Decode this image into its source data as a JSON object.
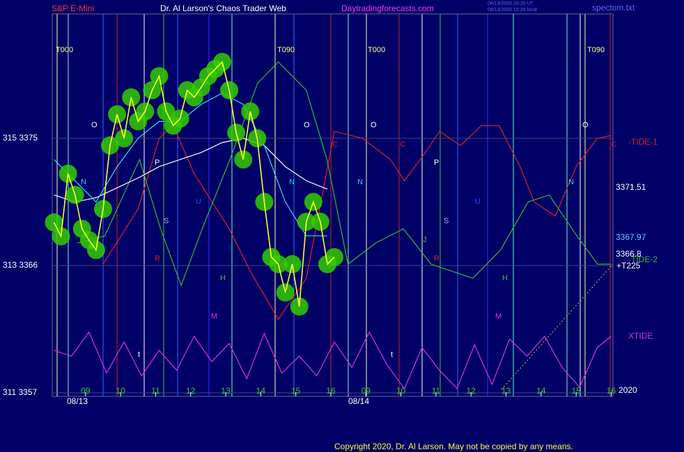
{
  "header": {
    "symbol": "S&P E-Mini",
    "site": "Dr. Al Larson's Chaos Trader Web",
    "url": "Daytradingforecasts.com",
    "stamp_ut": "08/13/2020 20:20 UT",
    "stamp_local": "08/13/2020 15:20 local",
    "file": "spectom.txt"
  },
  "footer": {
    "copyright": "Copyright 2020, Dr. Al Larson. May not be copied by any means."
  },
  "annotations": [
    "T000",
    "T090",
    "T000",
    "T090",
    "O",
    "O",
    "O",
    "O",
    "P",
    "P",
    "S",
    "S",
    "U",
    "U",
    "N",
    "N",
    "N",
    "N",
    "H",
    "H",
    "M",
    "M",
    "J",
    "R",
    "R",
    "C",
    "C",
    "C",
    "t",
    "t",
    "08/13",
    "08/14"
  ],
  "right_labels": [
    "+T225",
    "2020"
  ],
  "chart_data": {
    "type": "line",
    "xlim": [
      -0.95,
      15.05
    ],
    "ylim": [
      3356.75,
      3383.8
    ],
    "xticks": [
      {
        "value": 0,
        "label": "09"
      },
      {
        "value": 1,
        "label": "10"
      },
      {
        "value": 2,
        "label": "11"
      },
      {
        "value": 3,
        "label": "12"
      },
      {
        "value": 4,
        "label": "13"
      },
      {
        "value": 5,
        "label": "14"
      },
      {
        "value": 6,
        "label": "15"
      },
      {
        "value": 7,
        "label": "16"
      },
      {
        "value": 8,
        "label": "09"
      },
      {
        "value": 9,
        "label": "10"
      },
      {
        "value": 10,
        "label": "11"
      },
      {
        "value": 11,
        "label": "12"
      },
      {
        "value": 12,
        "label": "13"
      },
      {
        "value": 13,
        "label": "14"
      },
      {
        "value": 14,
        "label": "15"
      },
      {
        "value": 15,
        "label": "16"
      }
    ],
    "yticks": [
      {
        "value": 3357,
        "label": "311  3357"
      },
      {
        "value": 3366,
        "label": "313  3366"
      },
      {
        "value": 3375,
        "label": "315  3375"
      }
    ],
    "price_labels": [
      3371.51,
      3367.97,
      3366.8
    ],
    "price_label_colors": [
      "#ffffff",
      "#66ccff",
      "#ffffff"
    ],
    "grid": true,
    "series": [
      {
        "name": "-TIDE-1",
        "color": "#dd2222",
        "x": [
          0.5,
          1.5,
          2.1,
          2.5,
          3.1,
          4.1,
          4.7,
          5.5,
          6.3,
          7.1,
          7.9,
          8.7,
          9.1,
          9.7,
          10.1,
          10.7,
          11.3,
          11.8,
          12.4,
          12.8,
          13.4,
          14.0,
          14.6,
          15.0
        ],
        "values": [
          3366.1,
          3370.0,
          3375.0,
          3375.9,
          3372.5,
          3368.6,
          3365.6,
          3362.2,
          3365.1,
          3375.5,
          3375.0,
          3373.5,
          3372.0,
          3374.0,
          3375.5,
          3374.5,
          3375.9,
          3375.9,
          3373.0,
          3370.5,
          3369.5,
          3373.0,
          3375.0,
          3375.2
        ]
      },
      {
        "name": "-TIDE-2",
        "color": "#33bb33",
        "x": [
          -0.24,
          0.55,
          1.54,
          2.14,
          2.73,
          3.33,
          4.12,
          4.91,
          5.5,
          6.3,
          6.89,
          7.49,
          8.28,
          9.07,
          9.86,
          11.05,
          11.84,
          12.63,
          13.23,
          14.02,
          14.61,
          15.0
        ],
        "values": [
          3367.6,
          3368.1,
          3373.5,
          3368.6,
          3364.6,
          3368.6,
          3373.5,
          3378.9,
          3380.4,
          3378.4,
          3373.5,
          3366.1,
          3367.6,
          3368.6,
          3366.1,
          3365.1,
          3367.1,
          3370.5,
          3371.0,
          3368.1,
          3366.1,
          3366.1
        ]
      },
      {
        "name": "XTIDE",
        "color": "#dd33dd",
        "x": [
          -0.9,
          -0.4,
          0.1,
          0.6,
          1.1,
          1.6,
          2.1,
          2.6,
          3.1,
          3.6,
          4.1,
          4.6,
          5.1,
          5.6,
          6.1,
          6.6,
          7.1,
          7.6,
          8.1,
          8.6,
          9.1,
          9.6,
          10.1,
          10.6,
          11.1,
          11.6,
          12.1,
          12.6,
          13.1,
          13.6,
          14.1,
          14.6,
          15.0
        ],
        "values": [
          3360.0,
          3359.6,
          3361.3,
          3358.4,
          3360.6,
          3358.2,
          3360.0,
          3358.6,
          3361.0,
          3359.2,
          3360.5,
          3358.0,
          3361.2,
          3358.4,
          3359.6,
          3358.2,
          3360.6,
          3358.8,
          3361.3,
          3359.0,
          3357.3,
          3360.2,
          3358.6,
          3357.3,
          3360.4,
          3357.6,
          3360.8,
          3359.6,
          3361.0,
          3358.8,
          3357.4,
          3360.2,
          3361.0
        ]
      },
      {
        "color": "#ffffff",
        "x": [
          -0.9,
          -0.3,
          0.3,
          0.9,
          1.5,
          2.1,
          2.7,
          3.3,
          3.9,
          4.5,
          5.1,
          5.7,
          6.3,
          6.9
        ],
        "values": [
          3371.0,
          3370.5,
          3370.8,
          3371.5,
          3372.2,
          3373.0,
          3373.5,
          3374.0,
          3374.7,
          3375.0,
          3374.5,
          3373.0,
          3372.0,
          3371.4
        ]
      },
      {
        "color": "#33ddff",
        "x": [
          -0.9,
          -0.3,
          0.3,
          0.9,
          1.5,
          2.1,
          2.7,
          3.3,
          3.9,
          4.5,
          5.1,
          5.7,
          6.3,
          6.9
        ],
        "values": [
          3373.5,
          3372.0,
          3370.5,
          3373.0,
          3375.0,
          3376.2,
          3376.2,
          3377.4,
          3378.2,
          3377.4,
          3374.5,
          3370.5,
          3368.1,
          3368.1
        ]
      },
      {
        "color": "#ffff33",
        "halo": "#33cc00",
        "x": [
          -0.9,
          -0.7,
          -0.5,
          -0.3,
          -0.1,
          0.1,
          0.3,
          0.5,
          0.7,
          0.9,
          1.1,
          1.3,
          1.5,
          1.7,
          1.9,
          2.1,
          2.3,
          2.5,
          2.7,
          2.9,
          3.1,
          3.3,
          3.5,
          3.7,
          3.9,
          4.1,
          4.3,
          4.5,
          4.7,
          4.9,
          5.1,
          5.3,
          5.5,
          5.7,
          5.9,
          6.1,
          6.3,
          6.5,
          6.7,
          6.9,
          7.1
        ],
        "values": [
          3369.05,
          3368.07,
          3372.5,
          3371.0,
          3368.6,
          3367.8,
          3367.1,
          3370.0,
          3374.5,
          3376.7,
          3375.0,
          3377.9,
          3376.2,
          3376.9,
          3378.4,
          3379.4,
          3376.9,
          3375.9,
          3376.4,
          3378.4,
          3377.9,
          3378.6,
          3379.4,
          3379.9,
          3380.4,
          3378.4,
          3375.4,
          3373.5,
          3376.9,
          3375.0,
          3370.5,
          3366.6,
          3366.1,
          3364.1,
          3366.1,
          3363.1,
          3369.1,
          3370.5,
          3369.1,
          3366.1,
          3366.6
        ]
      }
    ]
  }
}
